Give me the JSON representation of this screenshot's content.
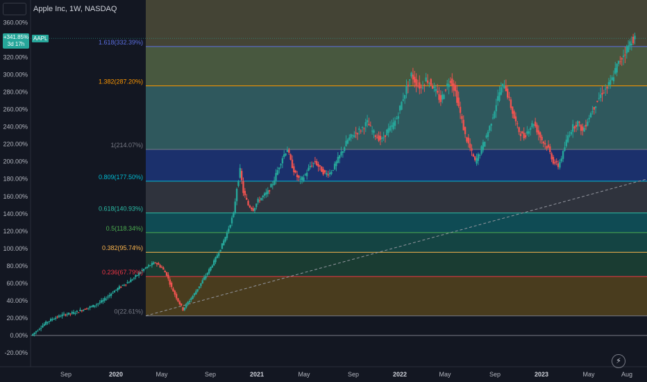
{
  "header": {
    "title": "Apple Inc, 1W, NASDAQ"
  },
  "badge": {
    "value": "+341.85%",
    "time": "3d 17h",
    "symbol": "AAPL"
  },
  "colors": {
    "up": "#26a69a",
    "down": "#ef5350",
    "background": "#131722"
  },
  "logo_icon": "lightning-icon",
  "chart_data": {
    "type": "candlestick",
    "title": "Apple Inc, 1W, NASDAQ",
    "y_axis": {
      "unit": "percent",
      "ticks": [
        "360.00%",
        "340.00%",
        "320.00%",
        "300.00%",
        "280.00%",
        "260.00%",
        "240.00%",
        "220.00%",
        "200.00%",
        "180.00%",
        "160.00%",
        "140.00%",
        "120.00%",
        "100.00%",
        "80.00%",
        "60.00%",
        "40.00%",
        "20.00%",
        "0.00%",
        "-20.00%"
      ],
      "range": [
        -27,
        360
      ]
    },
    "x_axis": {
      "ticks": [
        "Sep",
        "2020",
        "May",
        "Sep",
        "2021",
        "May",
        "Sep",
        "2022",
        "May",
        "Sep",
        "2023",
        "May",
        "Aug"
      ]
    },
    "fib_levels": [
      {
        "label": "1.618(332.39%)",
        "value": 332.39,
        "color": "#5b6ee1"
      },
      {
        "label": "1.382(287.20%)",
        "value": 287.2,
        "color": "#ff9800"
      },
      {
        "label": "1(214.07%)",
        "value": 214.07,
        "color": "#787b86"
      },
      {
        "label": "0.809(177.50%)",
        "value": 177.5,
        "color": "#00bcd4"
      },
      {
        "label": "0.618(140.93%)",
        "value": 140.93,
        "color": "#2bbfa8"
      },
      {
        "label": "0.5(118.34%)",
        "value": 118.34,
        "color": "#4caf50"
      },
      {
        "label": "0.382(95.74%)",
        "value": 95.74,
        "color": "#ffb74d"
      },
      {
        "label": "0.236(67.79%)",
        "value": 67.79,
        "color": "#f23645"
      },
      {
        "label": "0(22.61%)",
        "value": 22.61,
        "color": "#787b86"
      }
    ],
    "trend_points": [
      {
        "x": "2020-03",
        "y": 22.61
      },
      {
        "x": "2023-08",
        "y": 180
      }
    ],
    "price_path": [
      [
        0,
        0.0
      ],
      [
        6,
        10.0
      ],
      [
        10,
        16.0
      ],
      [
        14,
        20.0
      ],
      [
        20,
        24.0
      ],
      [
        26,
        26.0
      ],
      [
        32,
        30.0
      ],
      [
        38,
        34.0
      ],
      [
        44,
        40.0
      ],
      [
        50,
        50.0
      ],
      [
        56,
        58.0
      ],
      [
        60,
        62.0
      ],
      [
        64,
        68.0
      ],
      [
        68,
        75.0
      ],
      [
        72,
        80.0
      ],
      [
        76,
        84.0
      ],
      [
        80,
        78.0
      ],
      [
        83,
        70.0
      ],
      [
        86,
        55.0
      ],
      [
        90,
        40.0
      ],
      [
        93,
        30.0
      ],
      [
        96,
        38.0
      ],
      [
        100,
        48.0
      ],
      [
        104,
        60.0
      ],
      [
        108,
        72.0
      ],
      [
        112,
        85.0
      ],
      [
        116,
        100.0
      ],
      [
        120,
        118.0
      ],
      [
        124,
        140.0
      ],
      [
        126,
        170.0
      ],
      [
        128,
        190.0
      ],
      [
        130,
        165.0
      ],
      [
        133,
        150.0
      ],
      [
        136,
        145.0
      ],
      [
        139,
        155.0
      ],
      [
        142,
        160.0
      ],
      [
        145,
        165.0
      ],
      [
        148,
        175.0
      ],
      [
        151,
        190.0
      ],
      [
        154,
        205.0
      ],
      [
        157,
        215.0
      ],
      [
        159,
        200.0
      ],
      [
        162,
        185.0
      ],
      [
        165,
        178.0
      ],
      [
        168,
        185.0
      ],
      [
        171,
        195.0
      ],
      [
        174,
        200.0
      ],
      [
        177,
        192.0
      ],
      [
        180,
        186.0
      ],
      [
        183,
        187.0
      ],
      [
        186,
        195.0
      ],
      [
        190,
        210.0
      ],
      [
        194,
        225.0
      ],
      [
        198,
        232.0
      ],
      [
        202,
        237.0
      ],
      [
        206,
        245.0
      ],
      [
        209,
        235.0
      ],
      [
        212,
        228.0
      ],
      [
        215,
        225.0
      ],
      [
        218,
        235.0
      ],
      [
        221,
        240.0
      ],
      [
        224,
        250.0
      ],
      [
        227,
        268.0
      ],
      [
        230,
        285.0
      ],
      [
        233,
        300.0
      ],
      [
        236,
        290.0
      ],
      [
        239,
        285.0
      ],
      [
        242,
        295.0
      ],
      [
        245,
        290.0
      ],
      [
        248,
        280.0
      ],
      [
        251,
        270.0
      ],
      [
        254,
        285.0
      ],
      [
        257,
        295.0
      ],
      [
        260,
        280.0
      ],
      [
        263,
        255.0
      ],
      [
        266,
        230.0
      ],
      [
        269,
        215.0
      ],
      [
        272,
        200.0
      ],
      [
        275,
        210.0
      ],
      [
        278,
        225.0
      ],
      [
        281,
        240.0
      ],
      [
        284,
        260.0
      ],
      [
        287,
        280.0
      ],
      [
        290,
        290.0
      ],
      [
        293,
        270.0
      ],
      [
        296,
        250.0
      ],
      [
        299,
        235.0
      ],
      [
        302,
        228.0
      ],
      [
        305,
        238.0
      ],
      [
        308,
        245.0
      ],
      [
        311,
        232.0
      ],
      [
        314,
        222.0
      ],
      [
        317,
        215.0
      ],
      [
        320,
        200.0
      ],
      [
        323,
        195.0
      ],
      [
        326,
        210.0
      ],
      [
        329,
        230.0
      ],
      [
        332,
        240.0
      ],
      [
        335,
        245.0
      ],
      [
        338,
        235.0
      ],
      [
        341,
        248.0
      ],
      [
        344,
        260.0
      ],
      [
        347,
        270.0
      ],
      [
        350,
        280.0
      ],
      [
        353,
        285.0
      ],
      [
        356,
        295.0
      ],
      [
        359,
        310.0
      ],
      [
        362,
        320.0
      ],
      [
        365,
        330.0
      ],
      [
        368,
        340.0
      ],
      [
        370,
        342.0
      ]
    ]
  }
}
